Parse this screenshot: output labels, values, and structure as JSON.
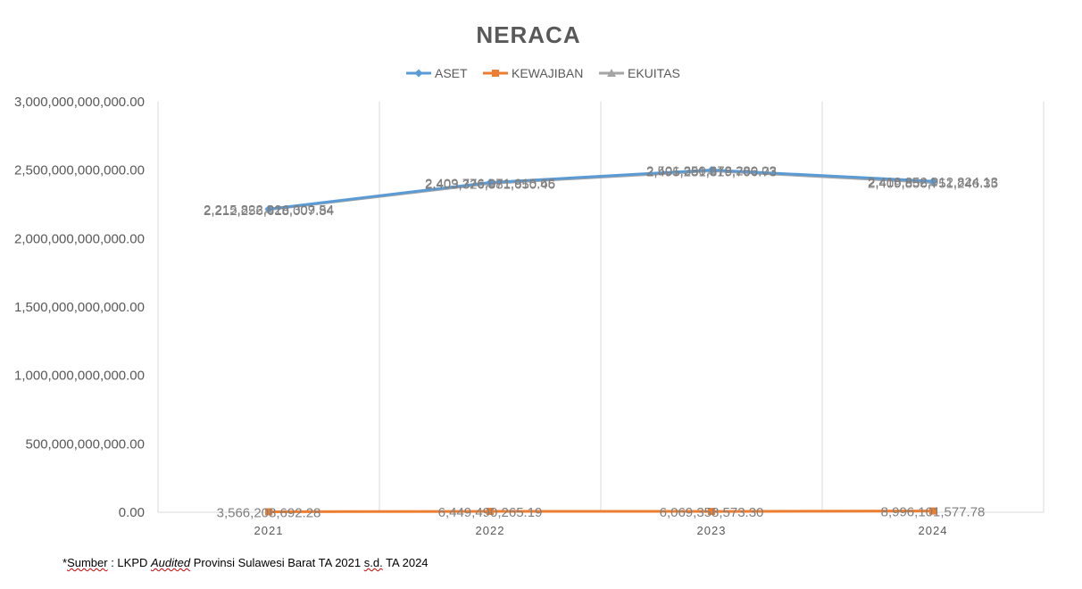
{
  "chart_data": {
    "type": "line",
    "title": "NERACA",
    "categories": [
      "2021",
      "2022",
      "2023",
      "2024"
    ],
    "ylim": [
      0,
      3000000000000
    ],
    "yticks": [
      "0.00",
      "500,000,000,000.00",
      "1,000,000,000,000.00",
      "1,500,000,000,000.00",
      "2,000,000,000,000.00",
      "2,500,000,000,000.00",
      "3,000,000,000,000.00"
    ],
    "ytick_values": [
      0,
      500000000000,
      1000000000000,
      1500000000000,
      2000000000000,
      2500000000000,
      3000000000000
    ],
    "grid": "vertical",
    "legend_position": "top",
    "series": [
      {
        "name": "ASET",
        "color": "#5b9bd5",
        "marker": "diamond",
        "values": [
          2215822826309.54,
          2409776071915.65,
          2501350678280.03,
          2418852912824.13
        ],
        "labels": [
          "2,215,822,826,309.54",
          "2,409,776,071,915.65",
          "2,501,350,678,280.03",
          "2,418,852,912,824.13"
        ]
      },
      {
        "name": "KEWAJIBAN",
        "color": "#ed7d31",
        "marker": "square",
        "values": [
          3566208692.28,
          6449490265.19,
          6069358573.3,
          8996101577.78
        ],
        "labels": [
          "3,566,208,692.28",
          "6,449,490,265.19",
          "6,069,358,573.30",
          "8,996,101,577.78"
        ]
      },
      {
        "name": "EKUITAS",
        "color": "#a5a5a5",
        "marker": "triangle",
        "values": [
          2212256618007.84,
          2403326581650.46,
          2495281319706.73,
          2409856751246.35
        ],
        "labels": [
          "2,212,256,618,007.84",
          "2,403,326,581,650.46",
          "2,495,281,319,706.73",
          "2,409,856,751,246.35"
        ]
      }
    ]
  },
  "footnote": {
    "prefix": "*",
    "sumber": "Sumber",
    "part1": " : LKPD ",
    "audited": "Audited",
    "part2": " Provinsi Sulawesi Barat TA 2021 ",
    "sd": "s.d.",
    "part3": " TA 2024"
  }
}
